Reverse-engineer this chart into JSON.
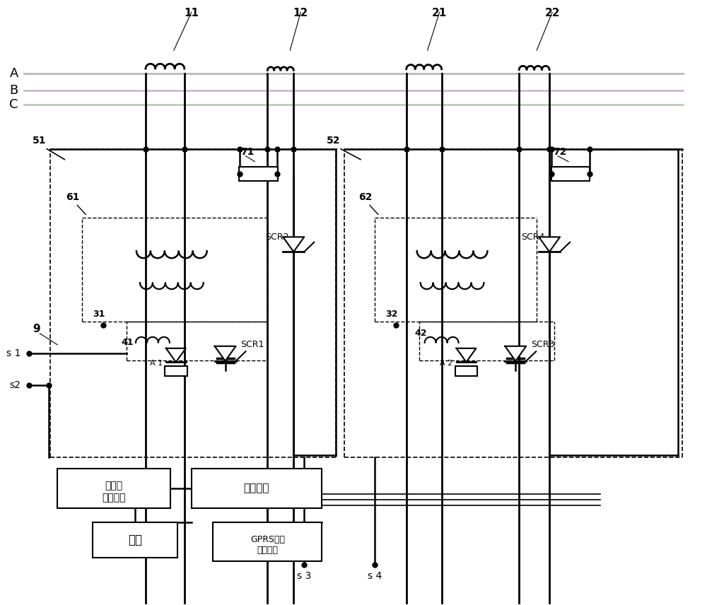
{
  "bg_color": "#ffffff",
  "line_color": "#000000",
  "figsize": [
    10.0,
    8.56
  ],
  "dpi": 100,
  "bus_colors": [
    "#c8c8c8",
    "#d4b8d4",
    "#c8d4c8"
  ],
  "bus_labels": [
    "A",
    "B",
    "C"
  ],
  "ct_labels": [
    "11",
    "12",
    "21",
    "22"
  ],
  "module_labels": [
    "51",
    "52",
    "61",
    "62",
    "71",
    "72",
    "31",
    "32",
    "41",
    "42"
  ],
  "scr_labels": [
    "SCR1",
    "SCR2",
    "SCR3",
    "SCR4"
  ],
  "terminal_labels": [
    "s 1",
    "s2",
    "s 3",
    "s 4"
  ],
  "box_labels": [
    "显示与\n输入单元",
    "控制装置",
    "电源",
    "GPRS远程\n发送模块"
  ],
  "number_9": "9"
}
